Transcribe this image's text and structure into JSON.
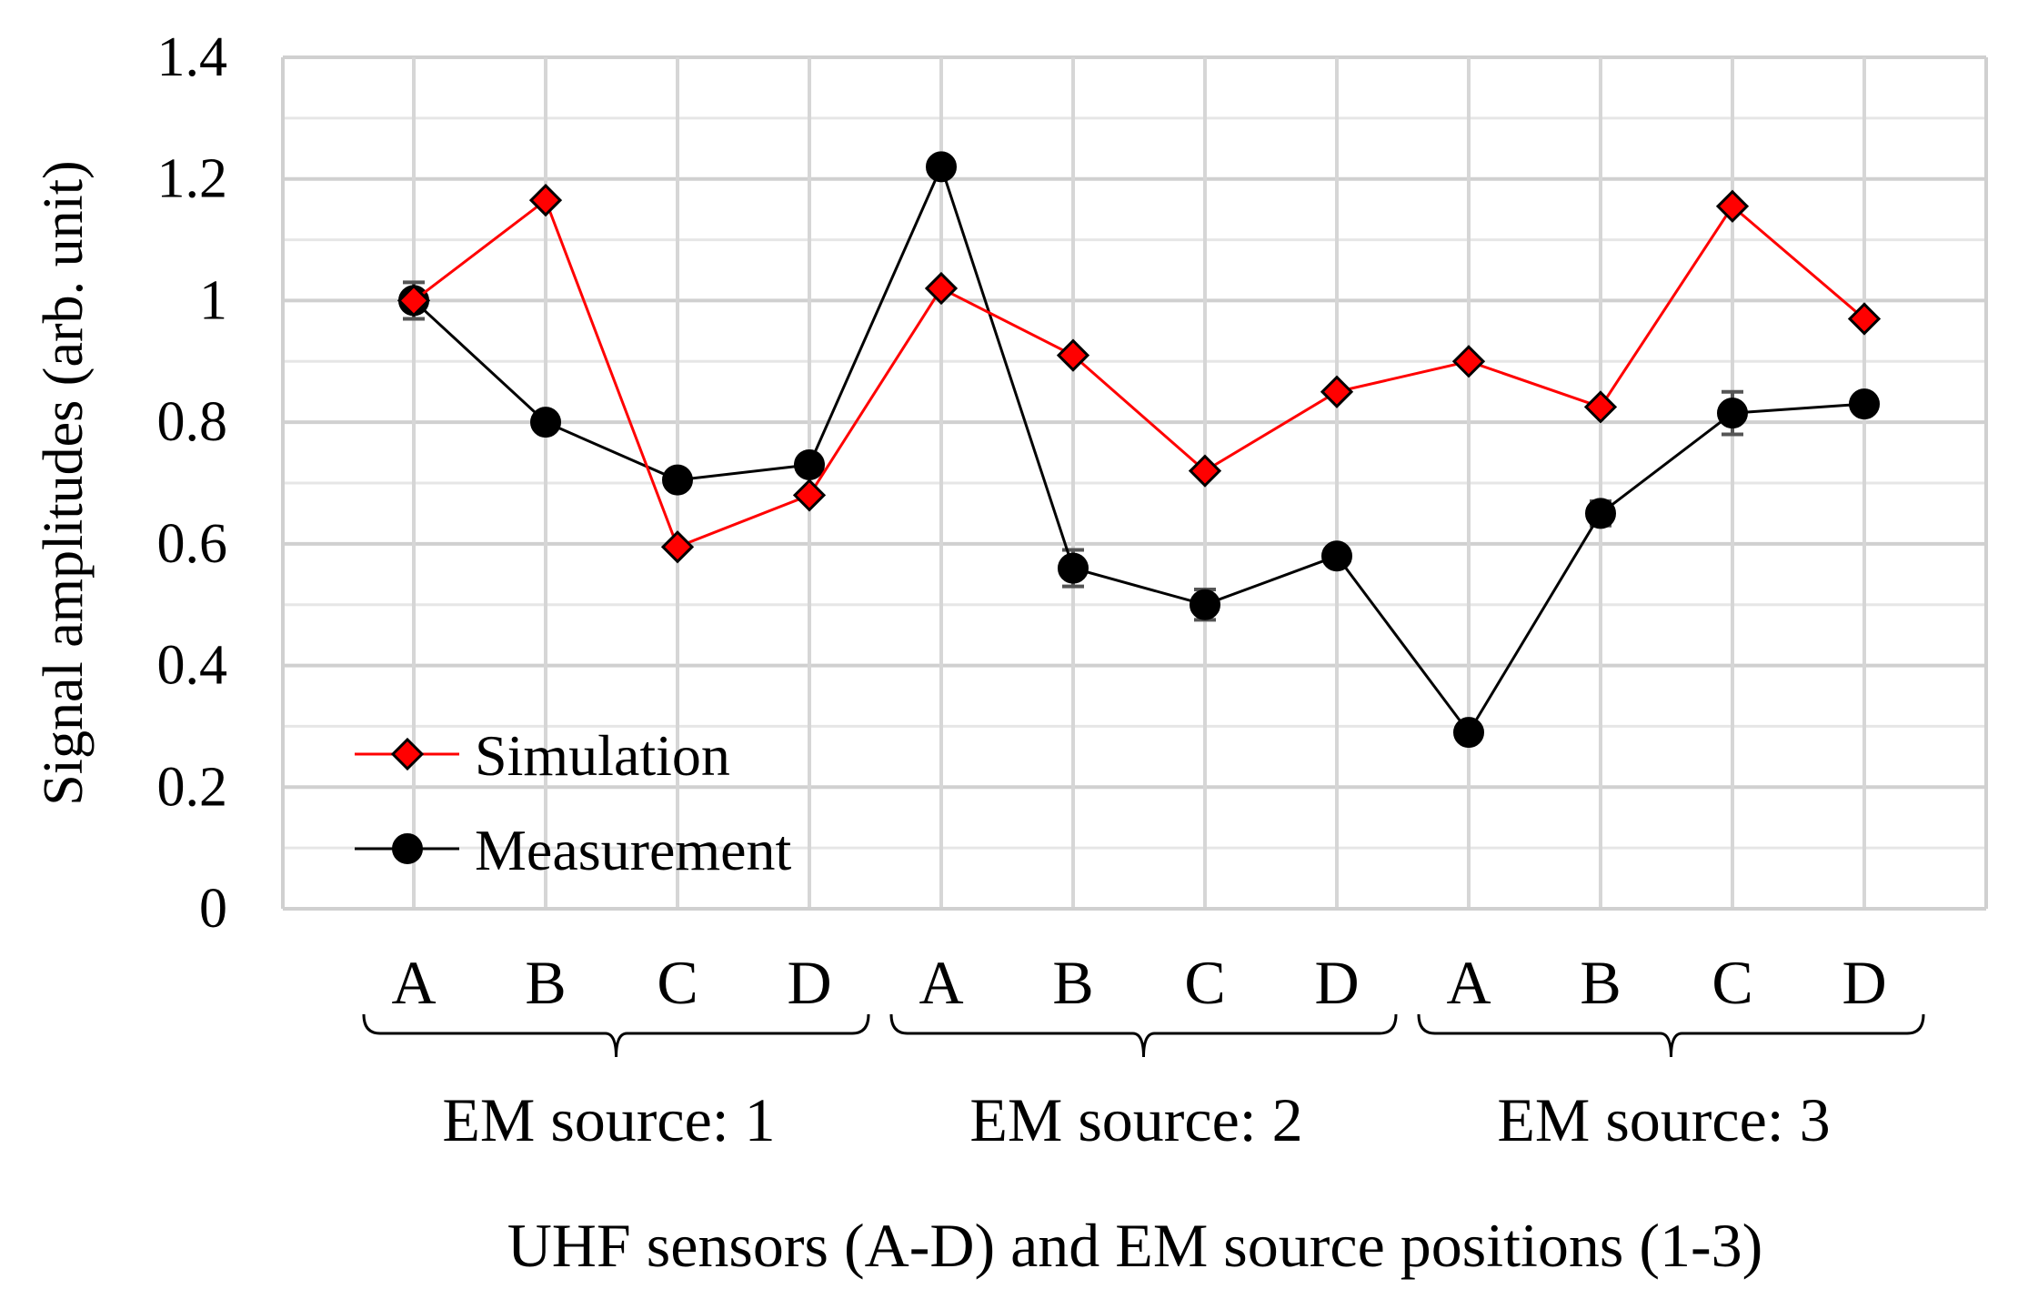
{
  "chart_data": {
    "type": "line",
    "categories": [
      "A",
      "B",
      "C",
      "D",
      "A",
      "B",
      "C",
      "D",
      "A",
      "B",
      "C",
      "D"
    ],
    "groups": [
      {
        "label": "EM source: 1",
        "categories": [
          "A",
          "B",
          "C",
          "D"
        ]
      },
      {
        "label": "EM source: 2",
        "categories": [
          "A",
          "B",
          "C",
          "D"
        ]
      },
      {
        "label": "EM source: 3",
        "categories": [
          "A",
          "B",
          "C",
          "D"
        ]
      }
    ],
    "series": [
      {
        "name": "Simulation",
        "color": "#ff0000",
        "marker": "diamond",
        "values": [
          1.0,
          1.165,
          0.595,
          0.68,
          1.02,
          0.91,
          0.72,
          0.85,
          0.9,
          0.825,
          1.155,
          0.97
        ]
      },
      {
        "name": "Measurement",
        "color": "#000000",
        "marker": "circle",
        "values": [
          1.0,
          0.8,
          0.705,
          0.73,
          1.22,
          0.56,
          0.5,
          0.58,
          0.29,
          0.65,
          0.815,
          0.83
        ],
        "error": [
          0.03,
          0.01,
          0.01,
          0.01,
          0.01,
          0.03,
          0.025,
          0.01,
          0.01,
          0.02,
          0.035,
          0.01
        ]
      }
    ],
    "xlabel": "UHF sensors (A-D) and EM source positions (1-3)",
    "ylabel": "Signal amplitudes (arb. unit)",
    "ylim": [
      0,
      1.4
    ],
    "yticks": [
      "0",
      "0.2",
      "0.4",
      "0.6",
      "0.8",
      "1",
      "1.2",
      "1.4"
    ],
    "grid": true,
    "legend_position": "bottom-left"
  }
}
